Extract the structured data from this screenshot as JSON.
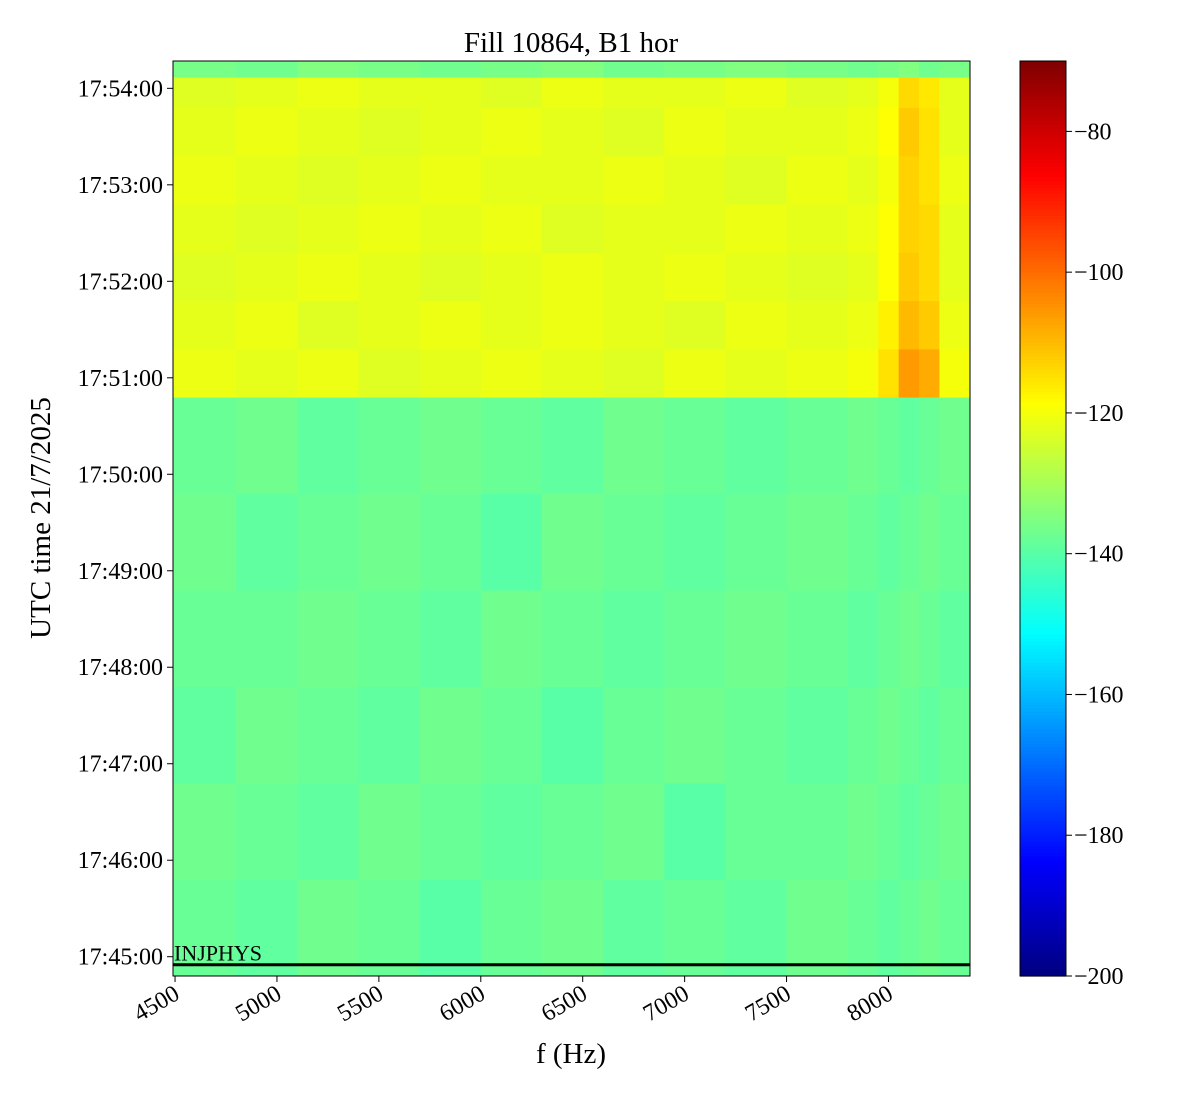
{
  "chart_data": {
    "type": "heatmap",
    "title": "Fill 10864, B1 hor",
    "x_label": "f (Hz)",
    "y_label": "UTC time 21/7/2025",
    "colormap": "jet",
    "x": [
      4490,
      4800,
      5100,
      5400,
      5700,
      6000,
      6300,
      6600,
      6900,
      7200,
      7500,
      7800,
      7950,
      8050,
      8150,
      8250,
      8400
    ],
    "y": [
      "17:44:48",
      "17:45:48",
      "17:46:48",
      "17:47:48",
      "17:48:48",
      "17:49:48",
      "17:50:48",
      "17:51:18",
      "17:51:48",
      "17:52:18",
      "17:52:48",
      "17:53:18",
      "17:53:48",
      "17:54:07",
      "17:54:17"
    ],
    "z": [
      [
        -138,
        -139,
        -137,
        -138,
        -140,
        -138,
        -137,
        -139,
        -138,
        -139,
        -137,
        -138,
        -139,
        -138,
        -137,
        -138
      ],
      [
        -137,
        -138,
        -139,
        -137,
        -138,
        -139,
        -138,
        -137,
        -140,
        -138,
        -138,
        -137,
        -138,
        -139,
        -138,
        -137
      ],
      [
        -139,
        -137,
        -138,
        -139,
        -137,
        -138,
        -140,
        -138,
        -137,
        -138,
        -139,
        -138,
        -137,
        -138,
        -139,
        -138
      ],
      [
        -138,
        -138,
        -137,
        -138,
        -139,
        -137,
        -138,
        -139,
        -138,
        -137,
        -138,
        -139,
        -138,
        -137,
        -138,
        -139
      ],
      [
        -137,
        -139,
        -138,
        -137,
        -138,
        -140,
        -137,
        -138,
        -139,
        -138,
        -137,
        -138,
        -139,
        -138,
        -137,
        -138
      ],
      [
        -138,
        -137,
        -139,
        -138,
        -137,
        -138,
        -139,
        -137,
        -138,
        -139,
        -138,
        -137,
        -138,
        -139,
        -138,
        -137
      ],
      [
        -121,
        -122,
        -121,
        -123,
        -122,
        -121,
        -122,
        -123,
        -121,
        -122,
        -121,
        -120,
        -115,
        -106,
        -108,
        -120
      ],
      [
        -122,
        -121,
        -123,
        -122,
        -121,
        -122,
        -121,
        -122,
        -123,
        -121,
        -122,
        -121,
        -117,
        -110,
        -112,
        -121
      ],
      [
        -123,
        -122,
        -121,
        -122,
        -123,
        -122,
        -121,
        -122,
        -121,
        -122,
        -123,
        -122,
        -119,
        -112,
        -114,
        -122
      ],
      [
        -122,
        -123,
        -122,
        -121,
        -122,
        -121,
        -123,
        -122,
        -122,
        -121,
        -122,
        -121,
        -119,
        -113,
        -114,
        -122
      ],
      [
        -121,
        -122,
        -123,
        -122,
        -121,
        -122,
        -122,
        -121,
        -122,
        -123,
        -121,
        -122,
        -120,
        -113,
        -115,
        -121
      ],
      [
        -122,
        -121,
        -122,
        -123,
        -122,
        -121,
        -122,
        -123,
        -121,
        -122,
        -122,
        -121,
        -119,
        -112,
        -115,
        -122
      ],
      [
        -123,
        -122,
        -121,
        -122,
        -122,
        -123,
        -121,
        -122,
        -122,
        -121,
        -123,
        -122,
        -120,
        -114,
        -116,
        -122
      ],
      [
        -136,
        -137,
        -135,
        -136,
        -137,
        -136,
        -135,
        -137,
        -136,
        -135,
        -136,
        -137,
        -136,
        -135,
        -137,
        -136
      ]
    ],
    "xlim": [
      4490,
      8400
    ],
    "ylim": [
      "17:44:48",
      "17:54:17"
    ],
    "xticks": [
      4500,
      5000,
      5500,
      6000,
      6500,
      7000,
      7500,
      8000
    ],
    "yticks": [
      "17:45:00",
      "17:46:00",
      "17:47:00",
      "17:48:00",
      "17:49:00",
      "17:50:00",
      "17:51:00",
      "17:52:00",
      "17:53:00",
      "17:54:00"
    ],
    "clim": [
      -200,
      -70
    ],
    "cticks": [
      {
        "value": -80,
        "label": "−80"
      },
      {
        "value": -100,
        "label": "−100"
      },
      {
        "value": -120,
        "label": "−120"
      },
      {
        "value": -140,
        "label": "−140"
      },
      {
        "value": -160,
        "label": "−160"
      },
      {
        "value": -180,
        "label": "−180"
      },
      {
        "value": -200,
        "label": "−200"
      }
    ],
    "annotation": {
      "text": "INJPHYS",
      "y": "17:44:55"
    }
  }
}
